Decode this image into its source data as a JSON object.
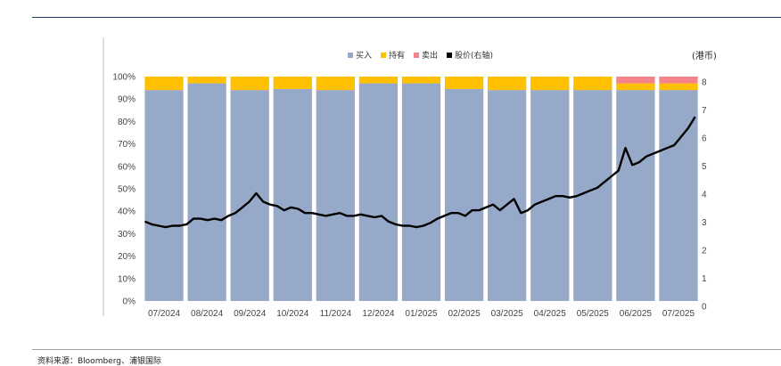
{
  "source_text": "资料来源：Bloomberg、浦银国际",
  "unit_label": "(港币)",
  "colors": {
    "buy": "#97a9c9",
    "hold": "#ffc000",
    "sell": "#f4848a",
    "price": "#000000"
  },
  "chart_data": {
    "type": "bar",
    "stacked": true,
    "categories": [
      "07/2024",
      "08/2024",
      "09/2024",
      "10/2024",
      "11/2024",
      "12/2024",
      "01/2025",
      "02/2025",
      "03/2025",
      "04/2025",
      "05/2025",
      "06/2025",
      "07/2025"
    ],
    "series": [
      {
        "name": "买入",
        "values": [
          94,
          97,
          94,
          94.5,
          94,
          97,
          97,
          94.5,
          94,
          94,
          94,
          94,
          94
        ]
      },
      {
        "name": "持有",
        "values": [
          6,
          3,
          6,
          5.5,
          6,
          3,
          3,
          5.5,
          6,
          6,
          6,
          3,
          3
        ]
      },
      {
        "name": "卖出",
        "values": [
          0,
          0,
          0,
          0,
          0,
          0,
          0,
          0,
          0,
          0,
          0,
          3,
          3
        ]
      }
    ],
    "line_series": {
      "name": "股价(右轴)",
      "y": [
        3.0,
        2.9,
        2.85,
        2.8,
        2.85,
        2.85,
        2.9,
        3.1,
        3.1,
        3.05,
        3.1,
        3.05,
        3.2,
        3.3,
        3.5,
        3.7,
        4.0,
        3.7,
        3.6,
        3.55,
        3.4,
        3.5,
        3.45,
        3.3,
        3.3,
        3.25,
        3.2,
        3.25,
        3.3,
        3.2,
        3.2,
        3.25,
        3.2,
        3.15,
        3.2,
        3.0,
        2.9,
        2.85,
        2.85,
        2.8,
        2.85,
        2.95,
        3.1,
        3.2,
        3.3,
        3.3,
        3.2,
        3.4,
        3.4,
        3.5,
        3.6,
        3.4,
        3.6,
        3.8,
        3.3,
        3.4,
        3.6,
        3.7,
        3.8,
        3.9,
        3.9,
        3.85,
        3.9,
        4.0,
        4.1,
        4.2,
        4.4,
        4.6,
        4.8,
        5.6,
        5.0,
        5.1,
        5.3,
        5.4,
        5.5,
        5.6,
        5.7,
        6.0,
        6.3,
        6.7
      ],
      "ylim": [
        0,
        8
      ]
    },
    "yticks_left": [
      "0%",
      "10%",
      "20%",
      "30%",
      "40%",
      "50%",
      "60%",
      "70%",
      "80%",
      "90%",
      "100%"
    ],
    "yticks_right": [
      "0",
      "1",
      "2",
      "3",
      "4",
      "5",
      "6",
      "7",
      "8"
    ],
    "ylim": [
      0,
      100
    ],
    "legend_position": "top-center"
  }
}
